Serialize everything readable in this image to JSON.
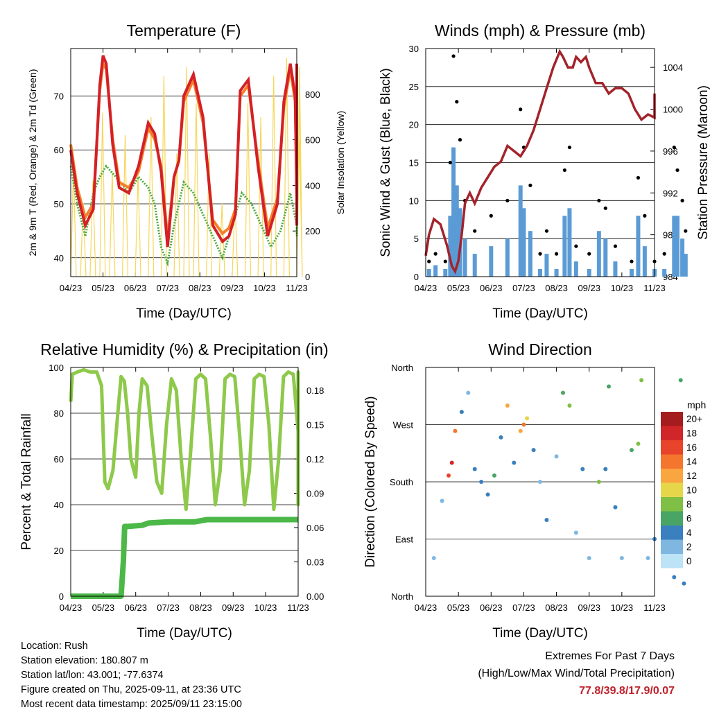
{
  "x_ticks": [
    "04/23",
    "05/23",
    "06/23",
    "07/23",
    "08/23",
    "09/23",
    "10/23",
    "11/23"
  ],
  "colors": {
    "temp2m": "#d42027",
    "temp9m": "#f57f29",
    "dewpoint": "#4aac3e",
    "solar": "#f7d65a",
    "gust": "#000000",
    "wind": "#5b9bd5",
    "pressure": "#a3232b",
    "rh": "#8ec94b",
    "rain": "#4cb848"
  },
  "wind_speed_legend": {
    "unit": "mph",
    "labels": [
      "20+",
      "18",
      "16",
      "14",
      "12",
      "10",
      "8",
      "6",
      "4",
      "2",
      "0"
    ],
    "colors": [
      "#a51c1f",
      "#d0262a",
      "#e8432b",
      "#f4752e",
      "#f9a540",
      "#e6d74a",
      "#7fbf45",
      "#49a565",
      "#3a7fbe",
      "#7fb7e1",
      "#bde3f6"
    ]
  },
  "chart_data": [
    {
      "type": "line",
      "title": "Temperature (F)",
      "xlabel": "Time (Day/UTC)",
      "ylabel": "2m & 9m T (Red, Orange) & 2m Td (Green)",
      "y2label": "Solar Insolation (Yellow)",
      "ylim": [
        36.5,
        78.8
      ],
      "y_ticks": [
        40,
        50,
        60,
        70
      ],
      "y2lim": [
        0,
        1000
      ],
      "y2_ticks": [
        0,
        200,
        400,
        600,
        800
      ],
      "x_ticks": [
        "04/23",
        "05/23",
        "06/23",
        "07/23",
        "08/23",
        "09/23",
        "10/23",
        "11/23"
      ],
      "grid": true,
      "series": [
        {
          "key": "temp2m",
          "x": [
            0,
            0.2,
            0.45,
            0.7,
            0.9,
            1.0,
            1.1,
            1.3,
            1.5,
            1.8,
            2.1,
            2.4,
            2.6,
            2.8,
            3.0,
            3.2,
            3.35,
            3.5,
            3.8,
            4.1,
            4.4,
            4.7,
            4.9,
            5.1,
            5.25,
            5.5,
            5.8,
            6.1,
            6.4,
            6.6,
            6.8,
            6.95,
            7.1,
            7.3,
            7.5,
            7.7,
            7.8,
            7.9,
            8.0
          ],
          "values": [
            60,
            52,
            46,
            49,
            72,
            77.5,
            76,
            61,
            53,
            52,
            57,
            65,
            63,
            56,
            42,
            55,
            58,
            70,
            74,
            66,
            46,
            43,
            44,
            48,
            71,
            73,
            57,
            44,
            50,
            69,
            76,
            70,
            51,
            46,
            60,
            75,
            76,
            72,
            65
          ]
        },
        {
          "key": "temp9m",
          "x": [
            0,
            0.2,
            0.45,
            0.7,
            0.9,
            1.0,
            1.1,
            1.3,
            1.5,
            1.8,
            2.1,
            2.4,
            2.6,
            2.8,
            3.0,
            3.2,
            3.35,
            3.5,
            3.8,
            4.1,
            4.4,
            4.7,
            4.9,
            5.1,
            5.25,
            5.5,
            5.8,
            6.1,
            6.4,
            6.6,
            6.8,
            6.95,
            7.1,
            7.3,
            7.5,
            7.7,
            7.8,
            7.9,
            8.0
          ],
          "values": [
            61,
            53,
            47.5,
            50,
            71,
            76,
            75,
            62,
            54,
            53,
            56,
            64,
            62,
            57,
            43.5,
            55,
            58,
            69,
            73,
            65,
            47,
            44.5,
            45.5,
            49,
            70,
            72,
            58,
            45.5,
            51,
            68,
            75,
            69,
            52,
            47.5,
            60,
            74,
            75,
            71,
            65
          ]
        },
        {
          "key": "dewpoint",
          "x": [
            0,
            0.2,
            0.45,
            0.7,
            0.9,
            1.1,
            1.4,
            1.8,
            2.1,
            2.4,
            2.6,
            2.8,
            3.0,
            3.2,
            3.5,
            3.8,
            4.1,
            4.4,
            4.7,
            5.0,
            5.3,
            5.6,
            5.9,
            6.2,
            6.5,
            6.8,
            7.1,
            7.4,
            7.6,
            7.8,
            8.0
          ],
          "values": [
            57,
            50,
            44,
            52,
            55,
            57,
            55,
            52,
            55,
            53,
            50,
            42,
            39,
            46,
            54,
            52,
            48,
            44,
            40,
            46,
            52,
            50,
            46,
            42,
            45,
            52,
            46,
            44,
            54,
            52,
            50
          ]
        },
        {
          "key": "solar",
          "x": [
            0,
            0.3,
            0.6,
            0.9,
            1.2,
            1.6,
            2.0,
            2.4,
            2.8,
            3.2,
            3.5,
            3.8,
            4.2,
            4.6,
            5.0,
            5.4,
            5.8,
            6.2,
            6.6,
            7.0,
            7.4,
            7.8,
            8.0
          ],
          "values": [
            480,
            320,
            420,
            720,
            460,
            620,
            450,
            700,
            880,
            540,
            920,
            760,
            540,
            320,
            330,
            760,
            700,
            880,
            960,
            920,
            780,
            860,
            600
          ]
        }
      ]
    },
    {
      "type": "scatter",
      "title": "Winds (mph) & Pressure (mb)",
      "xlabel": "Time (Day/UTC)",
      "ylabel": "Sonic Wind & Gust (Blue, Black)",
      "y2label": "Station Pressure (Maroon)",
      "ylim": [
        0,
        30
      ],
      "y_ticks": [
        0,
        5,
        10,
        15,
        20,
        25,
        30
      ],
      "y2lim": [
        984,
        1005.8
      ],
      "y2_ticks": [
        984,
        988,
        992,
        996,
        1000,
        1004
      ],
      "x_ticks": [
        "04/23",
        "05/23",
        "06/23",
        "07/23",
        "08/23",
        "09/23",
        "10/23",
        "11/23"
      ],
      "grid": true,
      "series": [
        {
          "key": "gust",
          "x": [
            0.1,
            0.3,
            0.6,
            0.75,
            0.85,
            0.95,
            1.05,
            1.2,
            1.5,
            2.0,
            2.5,
            2.9,
            3.0,
            3.2,
            3.5,
            3.7,
            4.0,
            4.25,
            4.4,
            4.6,
            5.0,
            5.3,
            5.5,
            5.8,
            6.3,
            6.5,
            6.7,
            7.0,
            7.3,
            7.6,
            7.7,
            7.85,
            7.95
          ],
          "values": [
            2,
            3,
            2,
            15,
            29,
            23,
            18,
            10,
            6,
            8,
            10,
            22,
            17,
            12,
            3,
            6,
            3,
            14,
            17,
            4,
            3,
            10,
            9,
            4,
            2,
            13,
            8,
            2,
            3,
            17,
            14,
            10,
            6
          ]
        },
        {
          "key": "wind",
          "x": [
            0.1,
            0.3,
            0.6,
            0.75,
            0.85,
            0.95,
            1.05,
            1.2,
            1.5,
            2.0,
            2.5,
            2.9,
            3.0,
            3.2,
            3.5,
            3.7,
            4.0,
            4.25,
            4.4,
            4.6,
            5.0,
            5.3,
            5.5,
            5.8,
            6.3,
            6.5,
            6.7,
            7.0,
            7.3,
            7.6,
            7.7,
            7.85,
            7.95
          ],
          "values": [
            1,
            1.5,
            1,
            8,
            17,
            12,
            9,
            5,
            3,
            4,
            5,
            12,
            9,
            6,
            1,
            3,
            1,
            8,
            9,
            2,
            1,
            6,
            5,
            2,
            1,
            8,
            4,
            1,
            1,
            8,
            8,
            5,
            3
          ]
        },
        {
          "key": "pressure",
          "x": [
            0,
            0.1,
            0.25,
            0.45,
            0.65,
            0.8,
            0.9,
            1.0,
            1.1,
            1.2,
            1.35,
            1.5,
            1.7,
            1.9,
            2.1,
            2.3,
            2.5,
            2.7,
            2.9,
            3.1,
            3.3,
            3.5,
            3.7,
            3.9,
            4.1,
            4.2,
            4.35,
            4.5,
            4.6,
            4.75,
            4.9,
            5.0,
            5.2,
            5.4,
            5.6,
            5.8,
            6.0,
            6.2,
            6.4,
            6.6,
            6.8,
            7.0,
            7.2,
            7.4,
            7.6,
            7.8,
            8.0
          ],
          "values": [
            986,
            988,
            989.5,
            989,
            987,
            985,
            984.5,
            985.5,
            988,
            991,
            992,
            991,
            992.5,
            993.5,
            994.5,
            995,
            996.5,
            996,
            995.5,
            996.5,
            998,
            1000,
            1002,
            1004,
            1005.5,
            1005,
            1004,
            1004,
            1005,
            1004.5,
            1005,
            1004,
            1002.5,
            1002.5,
            1001.5,
            1002,
            1002,
            1001.5,
            1000,
            999,
            999.5,
            999.2,
            1000,
            1000.5,
            1001.5,
            1000.5,
            1000.8
          ]
        }
      ]
    },
    {
      "type": "line",
      "title": "Relative Humidity (%) & Precipitation (in)",
      "xlabel": "Time (Day/UTC)",
      "ylabel": "Percent & Total Rainfall",
      "ylim": [
        0,
        100
      ],
      "y_ticks": [
        0,
        20,
        40,
        60,
        80,
        100
      ],
      "y2lim": [
        0,
        0.2
      ],
      "y2_ticks": [
        "0.00",
        "0.03",
        "0.06",
        "0.09",
        "0.12",
        "0.15",
        "0.18"
      ],
      "x_ticks": [
        "04/23",
        "05/23",
        "06/23",
        "07/23",
        "08/23",
        "09/23",
        "10/23",
        "11/23"
      ],
      "grid": true,
      "series": [
        {
          "key": "rh",
          "x": [
            0,
            0.05,
            0.2,
            0.4,
            0.6,
            0.8,
            0.95,
            1.0,
            1.05,
            1.15,
            1.3,
            1.45,
            1.55,
            1.65,
            1.75,
            1.85,
            2.0,
            2.1,
            2.2,
            2.35,
            2.5,
            2.65,
            2.8,
            2.95,
            3.1,
            3.25,
            3.4,
            3.55,
            3.7,
            3.85,
            4.0,
            4.15,
            4.3,
            4.45,
            4.6,
            4.75,
            4.9,
            5.05,
            5.2,
            5.35,
            5.5,
            5.65,
            5.8,
            5.95,
            6.1,
            6.25,
            6.4,
            6.55,
            6.7,
            6.85,
            7.0,
            7.15,
            7.3,
            7.45,
            7.6,
            7.75,
            7.85,
            7.95,
            8.0
          ],
          "values": [
            85,
            97,
            98,
            99,
            98,
            98,
            92,
            70,
            50,
            47,
            55,
            80,
            96,
            94,
            80,
            60,
            52,
            80,
            95,
            92,
            70,
            50,
            45,
            75,
            95,
            90,
            60,
            38,
            65,
            95,
            97,
            95,
            70,
            40,
            55,
            95,
            97,
            96,
            70,
            40,
            55,
            95,
            97,
            96,
            75,
            38,
            60,
            96,
            98,
            97,
            72,
            40,
            60,
            96,
            98,
            97,
            55,
            45,
            65
          ]
        },
        {
          "key": "rain",
          "x": [
            0,
            0.5,
            1.0,
            1.55,
            1.62,
            1.66,
            1.75,
            2.2,
            2.4,
            3.0,
            3.8,
            4.2,
            4.5,
            5.0,
            6.0,
            7.0,
            8.0
          ],
          "values": [
            0,
            0,
            0,
            0,
            0.03,
            0.061,
            0.061,
            0.062,
            0.064,
            0.065,
            0.065,
            0.067,
            0.067,
            0.067,
            0.067,
            0.067,
            0.067
          ]
        }
      ]
    },
    {
      "type": "scatter",
      "title": "Wind Direction",
      "xlabel": "Time (Day/UTC)",
      "ylabel": "Direction (Colored By Speed)",
      "y_ticks": [
        "North",
        "East",
        "South",
        "West",
        "North"
      ],
      "ylim": [
        0,
        360
      ],
      "x_ticks": [
        "04/23",
        "05/23",
        "06/23",
        "07/23",
        "08/23",
        "09/23",
        "10/23",
        "11/23"
      ],
      "grid": true,
      "series": [
        {
          "key": "direction",
          "x": [
            0.25,
            0.5,
            0.7,
            0.8,
            0.9,
            1.1,
            1.3,
            1.5,
            1.7,
            1.9,
            2.1,
            2.3,
            2.5,
            2.7,
            2.9,
            3.0,
            3.1,
            3.3,
            3.5,
            3.7,
            4.0,
            4.2,
            4.4,
            4.6,
            4.8,
            5.0,
            5.3,
            5.5,
            5.6,
            5.8,
            6.0,
            6.3,
            6.5,
            6.6,
            6.8,
            7.0,
            7.3,
            7.6,
            7.8,
            7.9
          ],
          "values": [
            60,
            150,
            190,
            210,
            260,
            290,
            320,
            200,
            180,
            160,
            190,
            250,
            300,
            210,
            260,
            270,
            280,
            230,
            180,
            120,
            220,
            320,
            300,
            100,
            200,
            60,
            180,
            200,
            330,
            140,
            60,
            230,
            240,
            340,
            60,
            90,
            180,
            30,
            340,
            20
          ],
          "speed": [
            1,
            1,
            15,
            17,
            13,
            3,
            2,
            4,
            3,
            4,
            5,
            4,
            12,
            3,
            11,
            13,
            9,
            4,
            2,
            3,
            2,
            5,
            7,
            1,
            4,
            2,
            8,
            3,
            5,
            4,
            1,
            6,
            7,
            7,
            2,
            3,
            2,
            3,
            6,
            4
          ]
        }
      ]
    }
  ],
  "info": {
    "location": "Location: Rush",
    "elevation": "Station elevation: 180.807 m",
    "latlon": "Station lat/lon: 43.001; -77.6374",
    "created": "Figure created on Thu, 2025-09-11, at 23:36 UTC",
    "recent": "Most recent data timestamp: 2025/09/11 23:15:00"
  },
  "extremes": {
    "line1": "Extremes For Past 7 Days",
    "line2": "(High/Low/Max Wind/Total Precipitation)",
    "values": "77.8/39.8/17.9/0.07"
  }
}
